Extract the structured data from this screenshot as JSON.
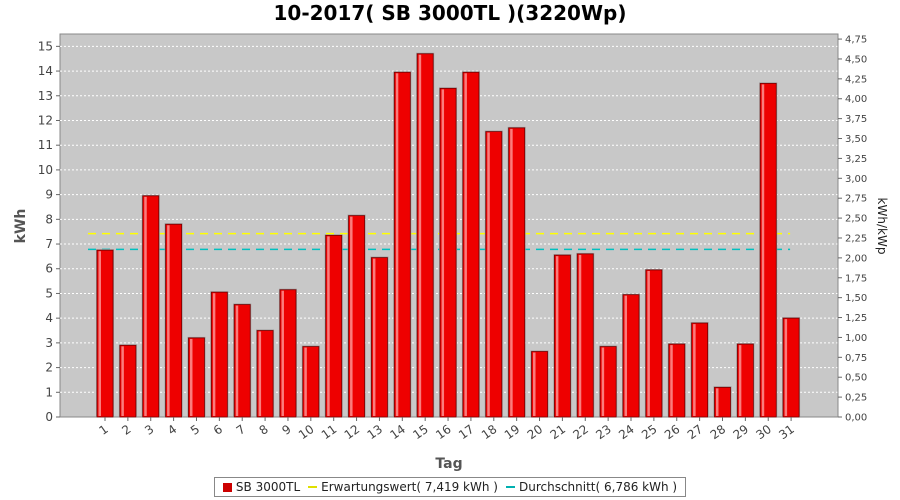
{
  "chart_data": {
    "type": "bar",
    "title": "10-2017( SB 3000TL )(3220Wp)",
    "xlabel": "Tag",
    "ylabel": "kWh",
    "ylabel_right": "kWh/kWp",
    "ylim": [
      0,
      15.5
    ],
    "ylim_right": [
      0,
      4.8137
    ],
    "yticks": [
      "0",
      "1",
      "2",
      "3",
      "4",
      "5",
      "6",
      "7",
      "8",
      "9",
      "10",
      "11",
      "12",
      "13",
      "14",
      "15"
    ],
    "yticks_right": [
      "0,00",
      "0,25",
      "0,50",
      "0,75",
      "1,00",
      "1,25",
      "1,50",
      "1,75",
      "2,00",
      "2,25",
      "2,50",
      "2,75",
      "3,00",
      "3,25",
      "3,50",
      "3,75",
      "4,00",
      "4,25",
      "4,50",
      "4,75"
    ],
    "categories": [
      "1",
      "2",
      "3",
      "4",
      "5",
      "6",
      "7",
      "8",
      "9",
      "10",
      "11",
      "12",
      "13",
      "14",
      "15",
      "16",
      "17",
      "18",
      "19",
      "20",
      "21",
      "22",
      "23",
      "24",
      "25",
      "26",
      "27",
      "28",
      "29",
      "30",
      "31"
    ],
    "series": [
      {
        "name": "SB 3000TL",
        "color": "#ee0000",
        "values": [
          6.75,
          2.9,
          8.95,
          7.8,
          3.2,
          5.05,
          4.55,
          3.5,
          5.15,
          2.85,
          7.35,
          8.15,
          6.45,
          13.95,
          14.7,
          13.3,
          13.95,
          11.55,
          11.7,
          2.65,
          6.55,
          6.6,
          2.85,
          4.95,
          5.95,
          2.95,
          3.8,
          1.2,
          2.95,
          13.5,
          4.0
        ]
      }
    ],
    "reference_lines": [
      {
        "name": "Erwartungswert",
        "value": 7.419,
        "color": "#ffff00"
      },
      {
        "name": "Durchschnitt",
        "value": 6.786,
        "color": "#00c0c0"
      }
    ],
    "grid": true,
    "legend_position": "bottom"
  },
  "legend": {
    "items": [
      "SB 3000TL",
      "Erwartungswert( 7,419 kWh )",
      "Durchschnitt( 6,786 kWh )"
    ]
  }
}
